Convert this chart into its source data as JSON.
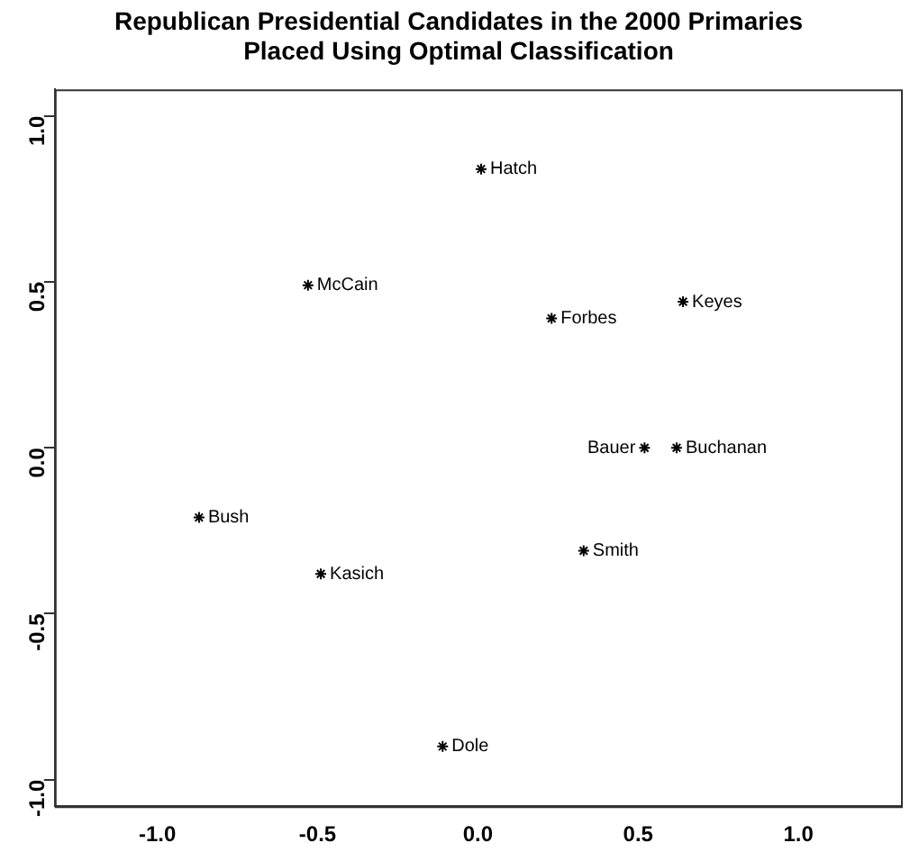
{
  "chart_data": {
    "type": "scatter",
    "title": "Republican Presidential Candidates in the 2000 Primaries\nPlaced Using Optimal Classification",
    "x": [
      0.01,
      -0.53,
      0.23,
      0.64,
      0.52,
      0.62,
      -0.87,
      0.33,
      -0.49,
      -0.11
    ],
    "values": [
      0.84,
      0.49,
      0.39,
      0.44,
      0.0,
      0.0,
      -0.21,
      -0.31,
      -0.38,
      -0.9
    ],
    "color": "#000000",
    "marker": "cross",
    "grid": false,
    "xlim": [
      -1.32,
      1.32
    ],
    "xticks": [
      {
        "value": -1,
        "label": "-1.0"
      },
      {
        "value": -0.5,
        "label": "-0.5"
      },
      {
        "value": 0,
        "label": "0.0"
      },
      {
        "value": 0.5,
        "label": "0.5"
      },
      {
        "value": 1,
        "label": "1.0"
      }
    ],
    "ylim": [
      -1.08,
      1.08
    ],
    "yticks": [
      {
        "value": -1,
        "label": "-1.0"
      },
      {
        "value": -0.5,
        "label": "-0.5"
      },
      {
        "value": 0,
        "label": "0.0"
      },
      {
        "value": 0.5,
        "label": "0.5"
      },
      {
        "value": 1,
        "label": "1.0"
      }
    ],
    "annotations": [
      {
        "text": "Hatch",
        "x": 0.01,
        "y": 0.84
      },
      {
        "text": "McCain",
        "x": -0.53,
        "y": 0.49
      },
      {
        "text": "Forbes",
        "x": 0.23,
        "y": 0.39
      },
      {
        "text": "Keyes",
        "x": 0.64,
        "y": 0.44
      },
      {
        "text": "Bauer",
        "x": 0.52,
        "y": 0.0
      },
      {
        "text": "Buchanan",
        "x": 0.62,
        "y": 0.0
      },
      {
        "text": "Bush",
        "x": -0.87,
        "y": -0.21
      },
      {
        "text": "Smith",
        "x": 0.33,
        "y": -0.31
      },
      {
        "text": "Kasich",
        "x": -0.49,
        "y": -0.38
      },
      {
        "text": "Dole",
        "x": -0.11,
        "y": -0.9
      }
    ]
  }
}
